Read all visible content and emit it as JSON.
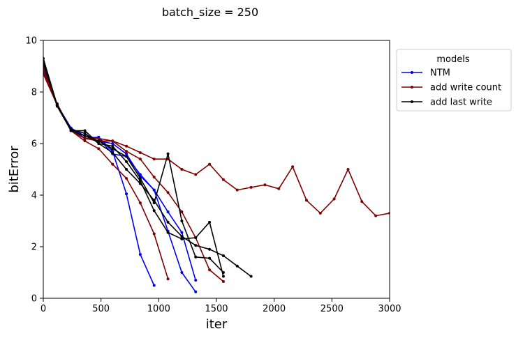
{
  "chart_data": {
    "type": "line",
    "title": "batch_size = 250",
    "xlabel": "iter",
    "ylabel": "bitError",
    "xlim": [
      0,
      3000
    ],
    "ylim": [
      0,
      10
    ],
    "xticks": [
      0,
      500,
      1000,
      1500,
      2000,
      2500,
      3000
    ],
    "yticks": [
      0,
      2,
      4,
      6,
      8,
      10
    ],
    "grid": false,
    "legend": {
      "title": "models",
      "placement": "outside upper right",
      "entries": [
        {
          "label": "NTM",
          "color": "#0000ee"
        },
        {
          "label": "add write count",
          "color": "#800000"
        },
        {
          "label": "add last write",
          "color": "#000000"
        }
      ]
    },
    "groups": [
      {
        "model": "NTM",
        "color": "#0000ee",
        "runs": [
          [
            [
              0,
              9.1
            ],
            [
              120,
              7.5
            ],
            [
              240,
              6.6
            ],
            [
              360,
              6.2
            ],
            [
              480,
              6.25
            ],
            [
              600,
              5.7
            ],
            [
              720,
              4.05
            ],
            [
              840,
              1.7
            ],
            [
              960,
              0.5
            ]
          ],
          [
            [
              0,
              8.9
            ],
            [
              120,
              7.5
            ],
            [
              240,
              6.6
            ],
            [
              360,
              6.3
            ],
            [
              480,
              6.2
            ],
            [
              600,
              5.6
            ],
            [
              720,
              5.5
            ],
            [
              840,
              4.8
            ],
            [
              960,
              4.2
            ],
            [
              1080,
              2.6
            ],
            [
              1200,
              1.0
            ],
            [
              1320,
              0.25
            ]
          ],
          [
            [
              0,
              9.0
            ],
            [
              120,
              7.5
            ],
            [
              240,
              6.5
            ],
            [
              360,
              6.2
            ],
            [
              480,
              6.1
            ],
            [
              600,
              6.0
            ],
            [
              720,
              5.6
            ],
            [
              840,
              4.75
            ],
            [
              960,
              4.2
            ],
            [
              1080,
              3.35
            ],
            [
              1200,
              2.55
            ],
            [
              1320,
              0.7
            ]
          ]
        ]
      },
      {
        "model": "add write count",
        "color": "#800000",
        "runs": [
          [
            [
              0,
              8.7
            ],
            [
              120,
              7.5
            ],
            [
              240,
              6.5
            ],
            [
              360,
              6.1
            ],
            [
              480,
              5.8
            ],
            [
              600,
              5.2
            ],
            [
              720,
              4.65
            ],
            [
              840,
              3.7
            ],
            [
              960,
              2.5
            ],
            [
              1080,
              0.75
            ]
          ],
          [
            [
              0,
              9.0
            ],
            [
              120,
              7.5
            ],
            [
              240,
              6.5
            ],
            [
              360,
              6.2
            ],
            [
              480,
              6.2
            ],
            [
              600,
              6.1
            ],
            [
              720,
              5.7
            ],
            [
              840,
              5.4
            ],
            [
              960,
              4.7
            ],
            [
              1080,
              4.1
            ],
            [
              1200,
              3.35
            ],
            [
              1320,
              2.35
            ],
            [
              1440,
              1.1
            ],
            [
              1560,
              0.65
            ]
          ],
          [
            [
              0,
              8.8
            ],
            [
              120,
              7.55
            ],
            [
              240,
              6.5
            ],
            [
              360,
              6.2
            ],
            [
              480,
              6.1
            ],
            [
              600,
              6.1
            ],
            [
              720,
              5.9
            ],
            [
              840,
              5.65
            ],
            [
              960,
              5.4
            ],
            [
              1080,
              5.4
            ],
            [
              1200,
              5.0
            ],
            [
              1320,
              4.8
            ],
            [
              1440,
              5.2
            ],
            [
              1560,
              4.6
            ],
            [
              1680,
              4.2
            ],
            [
              1800,
              4.3
            ],
            [
              1920,
              4.4
            ],
            [
              2040,
              4.25
            ],
            [
              2160,
              5.1
            ],
            [
              2280,
              3.8
            ],
            [
              2400,
              3.3
            ],
            [
              2520,
              3.85
            ],
            [
              2640,
              5.0
            ],
            [
              2760,
              3.75
            ],
            [
              2880,
              3.2
            ],
            [
              3000,
              3.3
            ]
          ]
        ]
      },
      {
        "model": "add last write",
        "color": "#000000",
        "runs": [
          [
            [
              0,
              9.3
            ],
            [
              120,
              7.5
            ],
            [
              240,
              6.5
            ],
            [
              360,
              6.5
            ],
            [
              480,
              6.0
            ],
            [
              600,
              5.9
            ],
            [
              720,
              5.3
            ],
            [
              840,
              4.55
            ],
            [
              960,
              3.4
            ],
            [
              1080,
              2.55
            ],
            [
              1200,
              2.3
            ],
            [
              1320,
              2.35
            ],
            [
              1440,
              2.95
            ],
            [
              1560,
              0.85
            ]
          ],
          [
            [
              0,
              9.2
            ],
            [
              120,
              7.45
            ],
            [
              240,
              6.5
            ],
            [
              360,
              6.3
            ],
            [
              480,
              6.1
            ],
            [
              600,
              5.8
            ],
            [
              720,
              5.5
            ],
            [
              840,
              4.65
            ],
            [
              960,
              3.7
            ],
            [
              1080,
              5.6
            ],
            [
              1200,
              3.0
            ],
            [
              1320,
              1.6
            ],
            [
              1440,
              1.55
            ],
            [
              1560,
              1.0
            ]
          ],
          [
            [
              0,
              9.1
            ],
            [
              120,
              7.5
            ],
            [
              240,
              6.55
            ],
            [
              360,
              6.4
            ],
            [
              480,
              6.0
            ],
            [
              600,
              5.65
            ],
            [
              720,
              5.0
            ],
            [
              840,
              4.45
            ],
            [
              960,
              3.8
            ],
            [
              1080,
              2.95
            ],
            [
              1200,
              2.4
            ],
            [
              1320,
              2.05
            ],
            [
              1440,
              1.9
            ],
            [
              1560,
              1.65
            ],
            [
              1680,
              1.25
            ],
            [
              1800,
              0.85
            ]
          ]
        ]
      }
    ]
  }
}
